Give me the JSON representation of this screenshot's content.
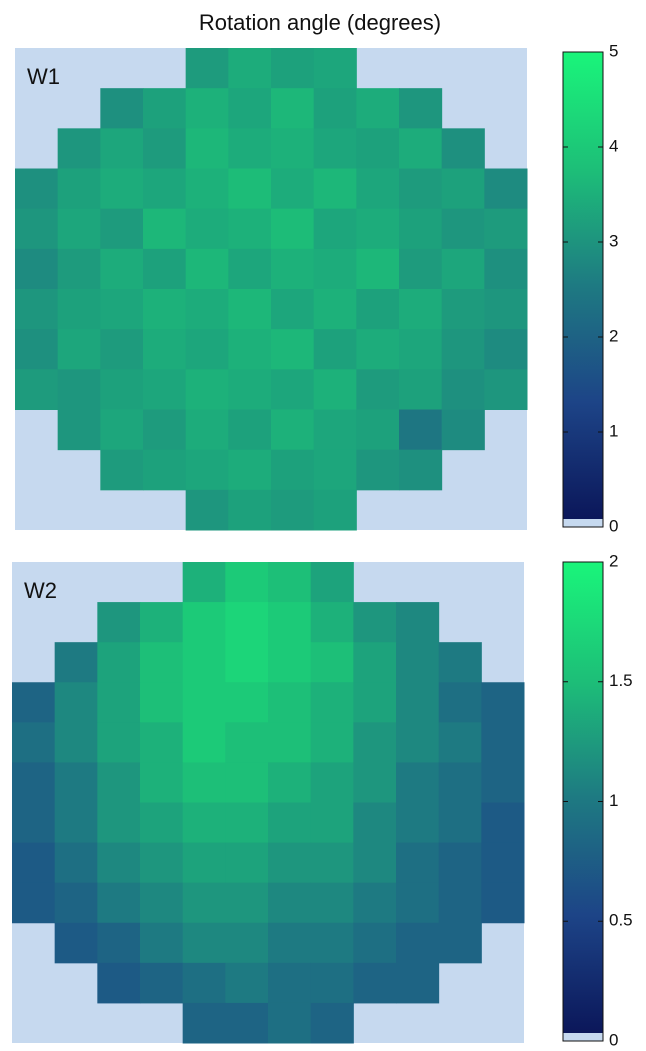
{
  "title": "Rotation angle (degrees)",
  "chart_data": [
    {
      "type": "heatmap",
      "label": "W1",
      "zlim": [
        0,
        5
      ],
      "zticks": [
        0,
        1,
        2,
        3,
        4,
        5
      ],
      "colorscale": [
        "#0b175a",
        "#1d4487",
        "#1e7a82",
        "#1dbf78",
        "#1af57a"
      ],
      "null_color": "#c6d9ef",
      "values": [
        [
          null,
          null,
          null,
          null,
          3.1,
          3.4,
          3.2,
          3.3,
          null,
          null,
          null,
          null
        ],
        [
          null,
          null,
          2.9,
          3.2,
          3.5,
          3.3,
          3.6,
          3.2,
          3.4,
          3.0,
          null,
          null
        ],
        [
          null,
          3.0,
          3.3,
          3.1,
          3.6,
          3.4,
          3.5,
          3.3,
          3.2,
          3.4,
          2.9,
          null
        ],
        [
          2.9,
          3.2,
          3.4,
          3.3,
          3.5,
          3.7,
          3.4,
          3.6,
          3.3,
          3.1,
          3.2,
          2.8
        ],
        [
          3.0,
          3.3,
          3.1,
          3.6,
          3.4,
          3.5,
          3.7,
          3.3,
          3.4,
          3.2,
          3.0,
          3.1
        ],
        [
          2.8,
          3.1,
          3.4,
          3.2,
          3.6,
          3.3,
          3.5,
          3.4,
          3.6,
          3.1,
          3.3,
          2.9
        ],
        [
          3.0,
          3.2,
          3.3,
          3.5,
          3.4,
          3.6,
          3.3,
          3.5,
          3.2,
          3.4,
          3.1,
          3.0
        ],
        [
          2.9,
          3.3,
          3.1,
          3.4,
          3.3,
          3.5,
          3.6,
          3.2,
          3.4,
          3.3,
          3.0,
          2.8
        ],
        [
          3.1,
          3.0,
          3.2,
          3.3,
          3.5,
          3.4,
          3.3,
          3.5,
          3.1,
          3.2,
          2.9,
          3.0
        ],
        [
          null,
          3.0,
          3.3,
          3.1,
          3.4,
          3.2,
          3.5,
          3.3,
          3.2,
          2.4,
          2.8,
          null
        ],
        [
          null,
          null,
          3.1,
          3.2,
          3.3,
          3.4,
          3.2,
          3.3,
          3.0,
          2.9,
          null,
          null
        ],
        [
          null,
          null,
          null,
          null,
          3.0,
          3.2,
          3.1,
          3.2,
          null,
          null,
          null,
          null
        ]
      ]
    },
    {
      "type": "heatmap",
      "label": "W2",
      "zlim": [
        0,
        2
      ],
      "zticks": [
        0,
        0.5,
        1,
        1.5,
        2
      ],
      "colorscale": [
        "#0b175a",
        "#1d4487",
        "#1e7a82",
        "#1dbf78",
        "#1af57a"
      ],
      "null_color": "#c6d9ef",
      "values": [
        [
          null,
          null,
          null,
          null,
          1.4,
          1.6,
          1.5,
          1.3,
          null,
          null,
          null,
          null
        ],
        [
          null,
          null,
          1.2,
          1.4,
          1.6,
          1.7,
          1.6,
          1.4,
          1.2,
          1.1,
          null,
          null
        ],
        [
          null,
          1.0,
          1.3,
          1.5,
          1.6,
          1.7,
          1.6,
          1.5,
          1.3,
          1.1,
          1.0,
          null
        ],
        [
          0.8,
          1.1,
          1.3,
          1.5,
          1.6,
          1.6,
          1.5,
          1.4,
          1.3,
          1.1,
          0.9,
          0.8
        ],
        [
          0.9,
          1.1,
          1.3,
          1.4,
          1.6,
          1.5,
          1.5,
          1.4,
          1.2,
          1.1,
          1.0,
          0.8
        ],
        [
          0.8,
          1.0,
          1.2,
          1.4,
          1.5,
          1.5,
          1.4,
          1.3,
          1.2,
          1.0,
          0.9,
          0.8
        ],
        [
          0.8,
          1.0,
          1.2,
          1.3,
          1.4,
          1.4,
          1.3,
          1.3,
          1.1,
          1.0,
          0.9,
          0.7
        ],
        [
          0.7,
          0.9,
          1.1,
          1.2,
          1.3,
          1.3,
          1.2,
          1.2,
          1.1,
          0.9,
          0.8,
          0.7
        ],
        [
          0.7,
          0.8,
          1.0,
          1.1,
          1.2,
          1.2,
          1.1,
          1.1,
          1.0,
          0.9,
          0.8,
          0.7
        ],
        [
          null,
          0.7,
          0.8,
          1.0,
          1.1,
          1.1,
          1.0,
          1.0,
          0.9,
          0.8,
          0.8,
          null
        ],
        [
          null,
          null,
          0.7,
          0.8,
          0.9,
          1.0,
          0.9,
          0.9,
          0.8,
          0.8,
          null,
          null
        ],
        [
          null,
          null,
          null,
          null,
          0.8,
          0.8,
          0.9,
          0.8,
          null,
          null,
          null,
          null
        ]
      ]
    }
  ]
}
